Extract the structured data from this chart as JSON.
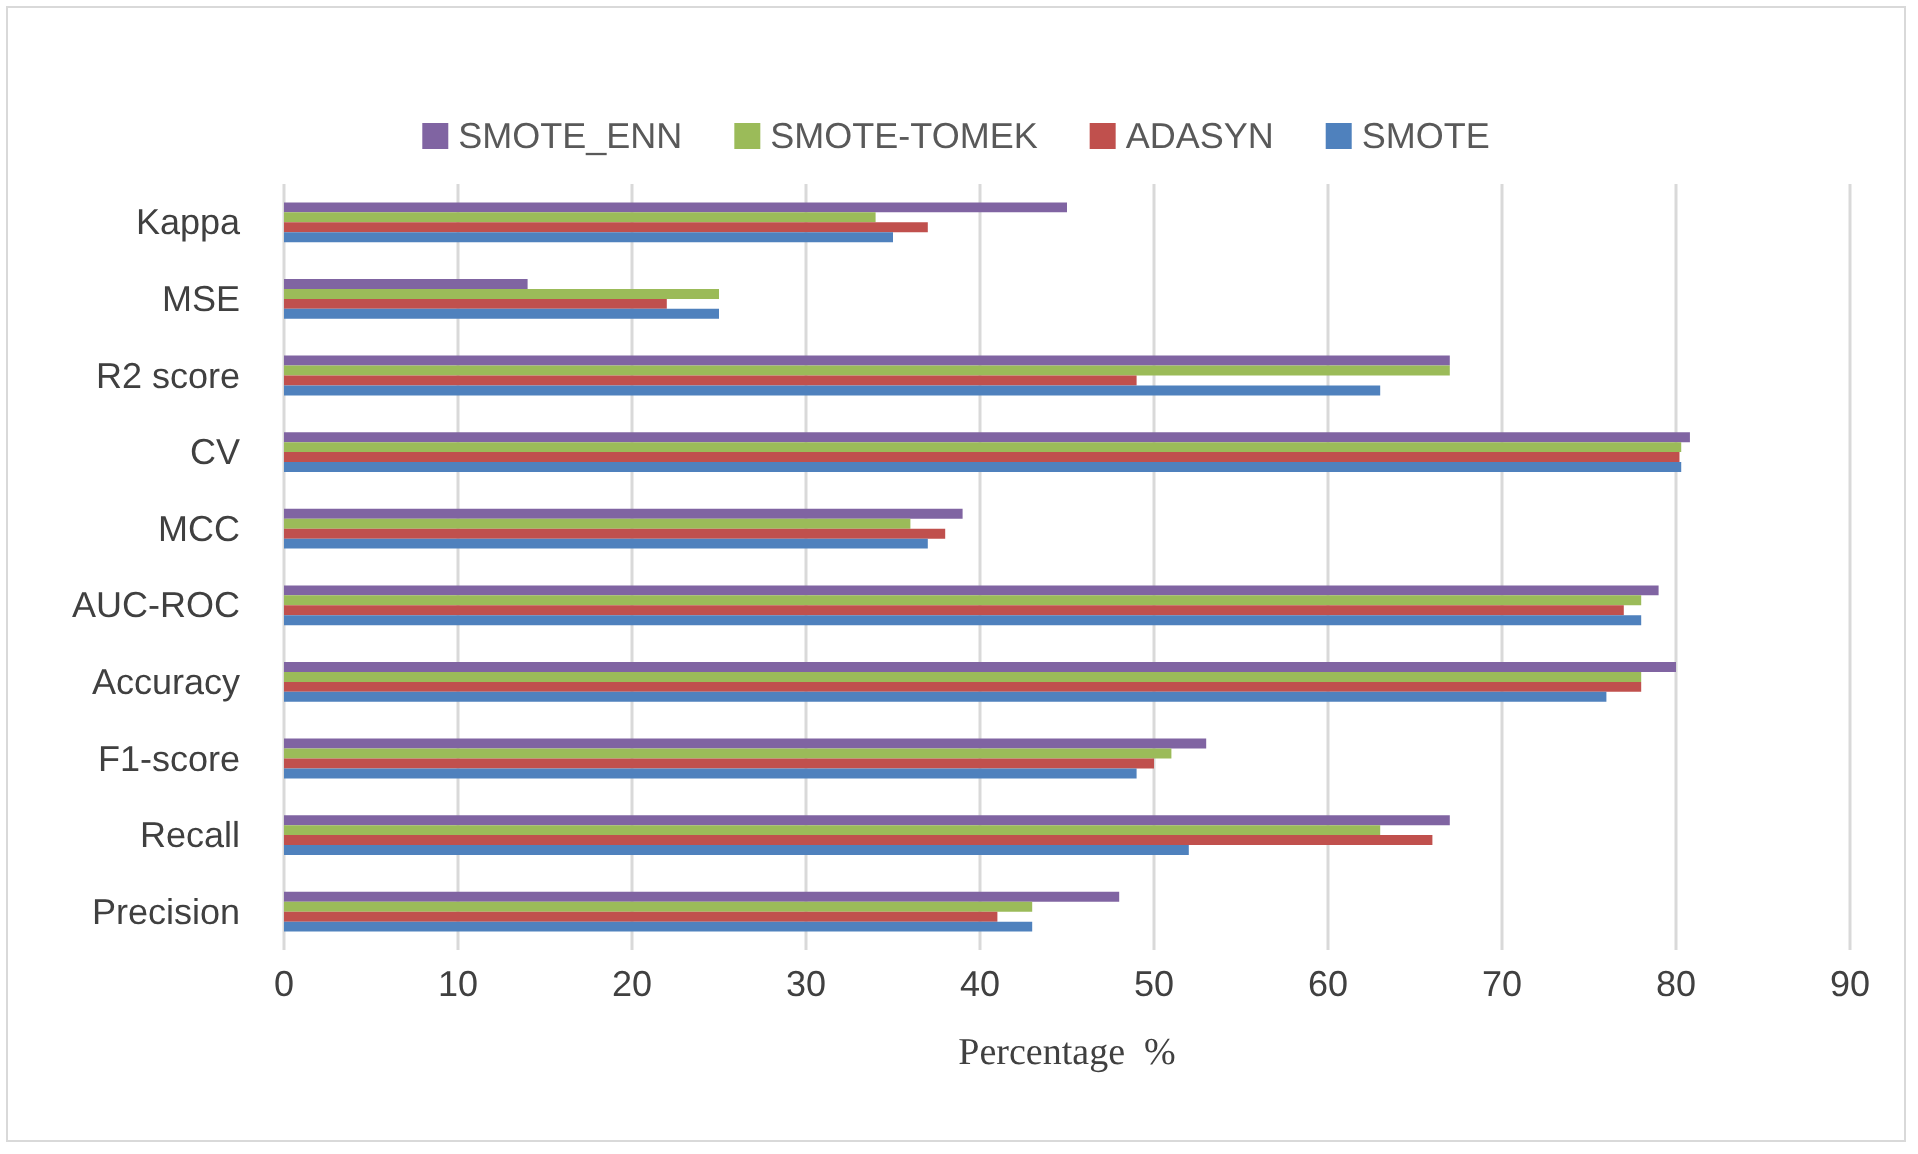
{
  "chart_data": {
    "type": "bar",
    "orientation": "horizontal",
    "xlabel": "Percentage  %",
    "categories": [
      "Kappa",
      "MSE",
      "R2 score",
      "CV",
      "MCC",
      "AUC-ROC",
      "Accuracy",
      "F1-score",
      "Recall",
      "Precision"
    ],
    "series": [
      {
        "name": "SMOTE_ENN",
        "color": "#8064a2",
        "values": [
          45,
          14,
          67,
          80.8,
          39,
          79,
          80,
          53,
          67,
          48
        ]
      },
      {
        "name": "SMOTE-TOMEK",
        "color": "#9bbb59",
        "values": [
          34,
          25,
          67,
          80.3,
          36,
          78,
          78,
          51,
          63,
          43
        ]
      },
      {
        "name": "ADASYN",
        "color": "#c0504d",
        "values": [
          37,
          22,
          49,
          80.2,
          38,
          77,
          78,
          50,
          66,
          41
        ]
      },
      {
        "name": "SMOTE",
        "color": "#4f81bd",
        "values": [
          35,
          25,
          63,
          80.3,
          37,
          78,
          76,
          49,
          52,
          43
        ]
      }
    ],
    "xlim": [
      0,
      90
    ],
    "xticks": [
      0,
      10,
      20,
      30,
      40,
      50,
      60,
      70,
      80,
      90
    ],
    "grid": "x",
    "legend": "top"
  }
}
